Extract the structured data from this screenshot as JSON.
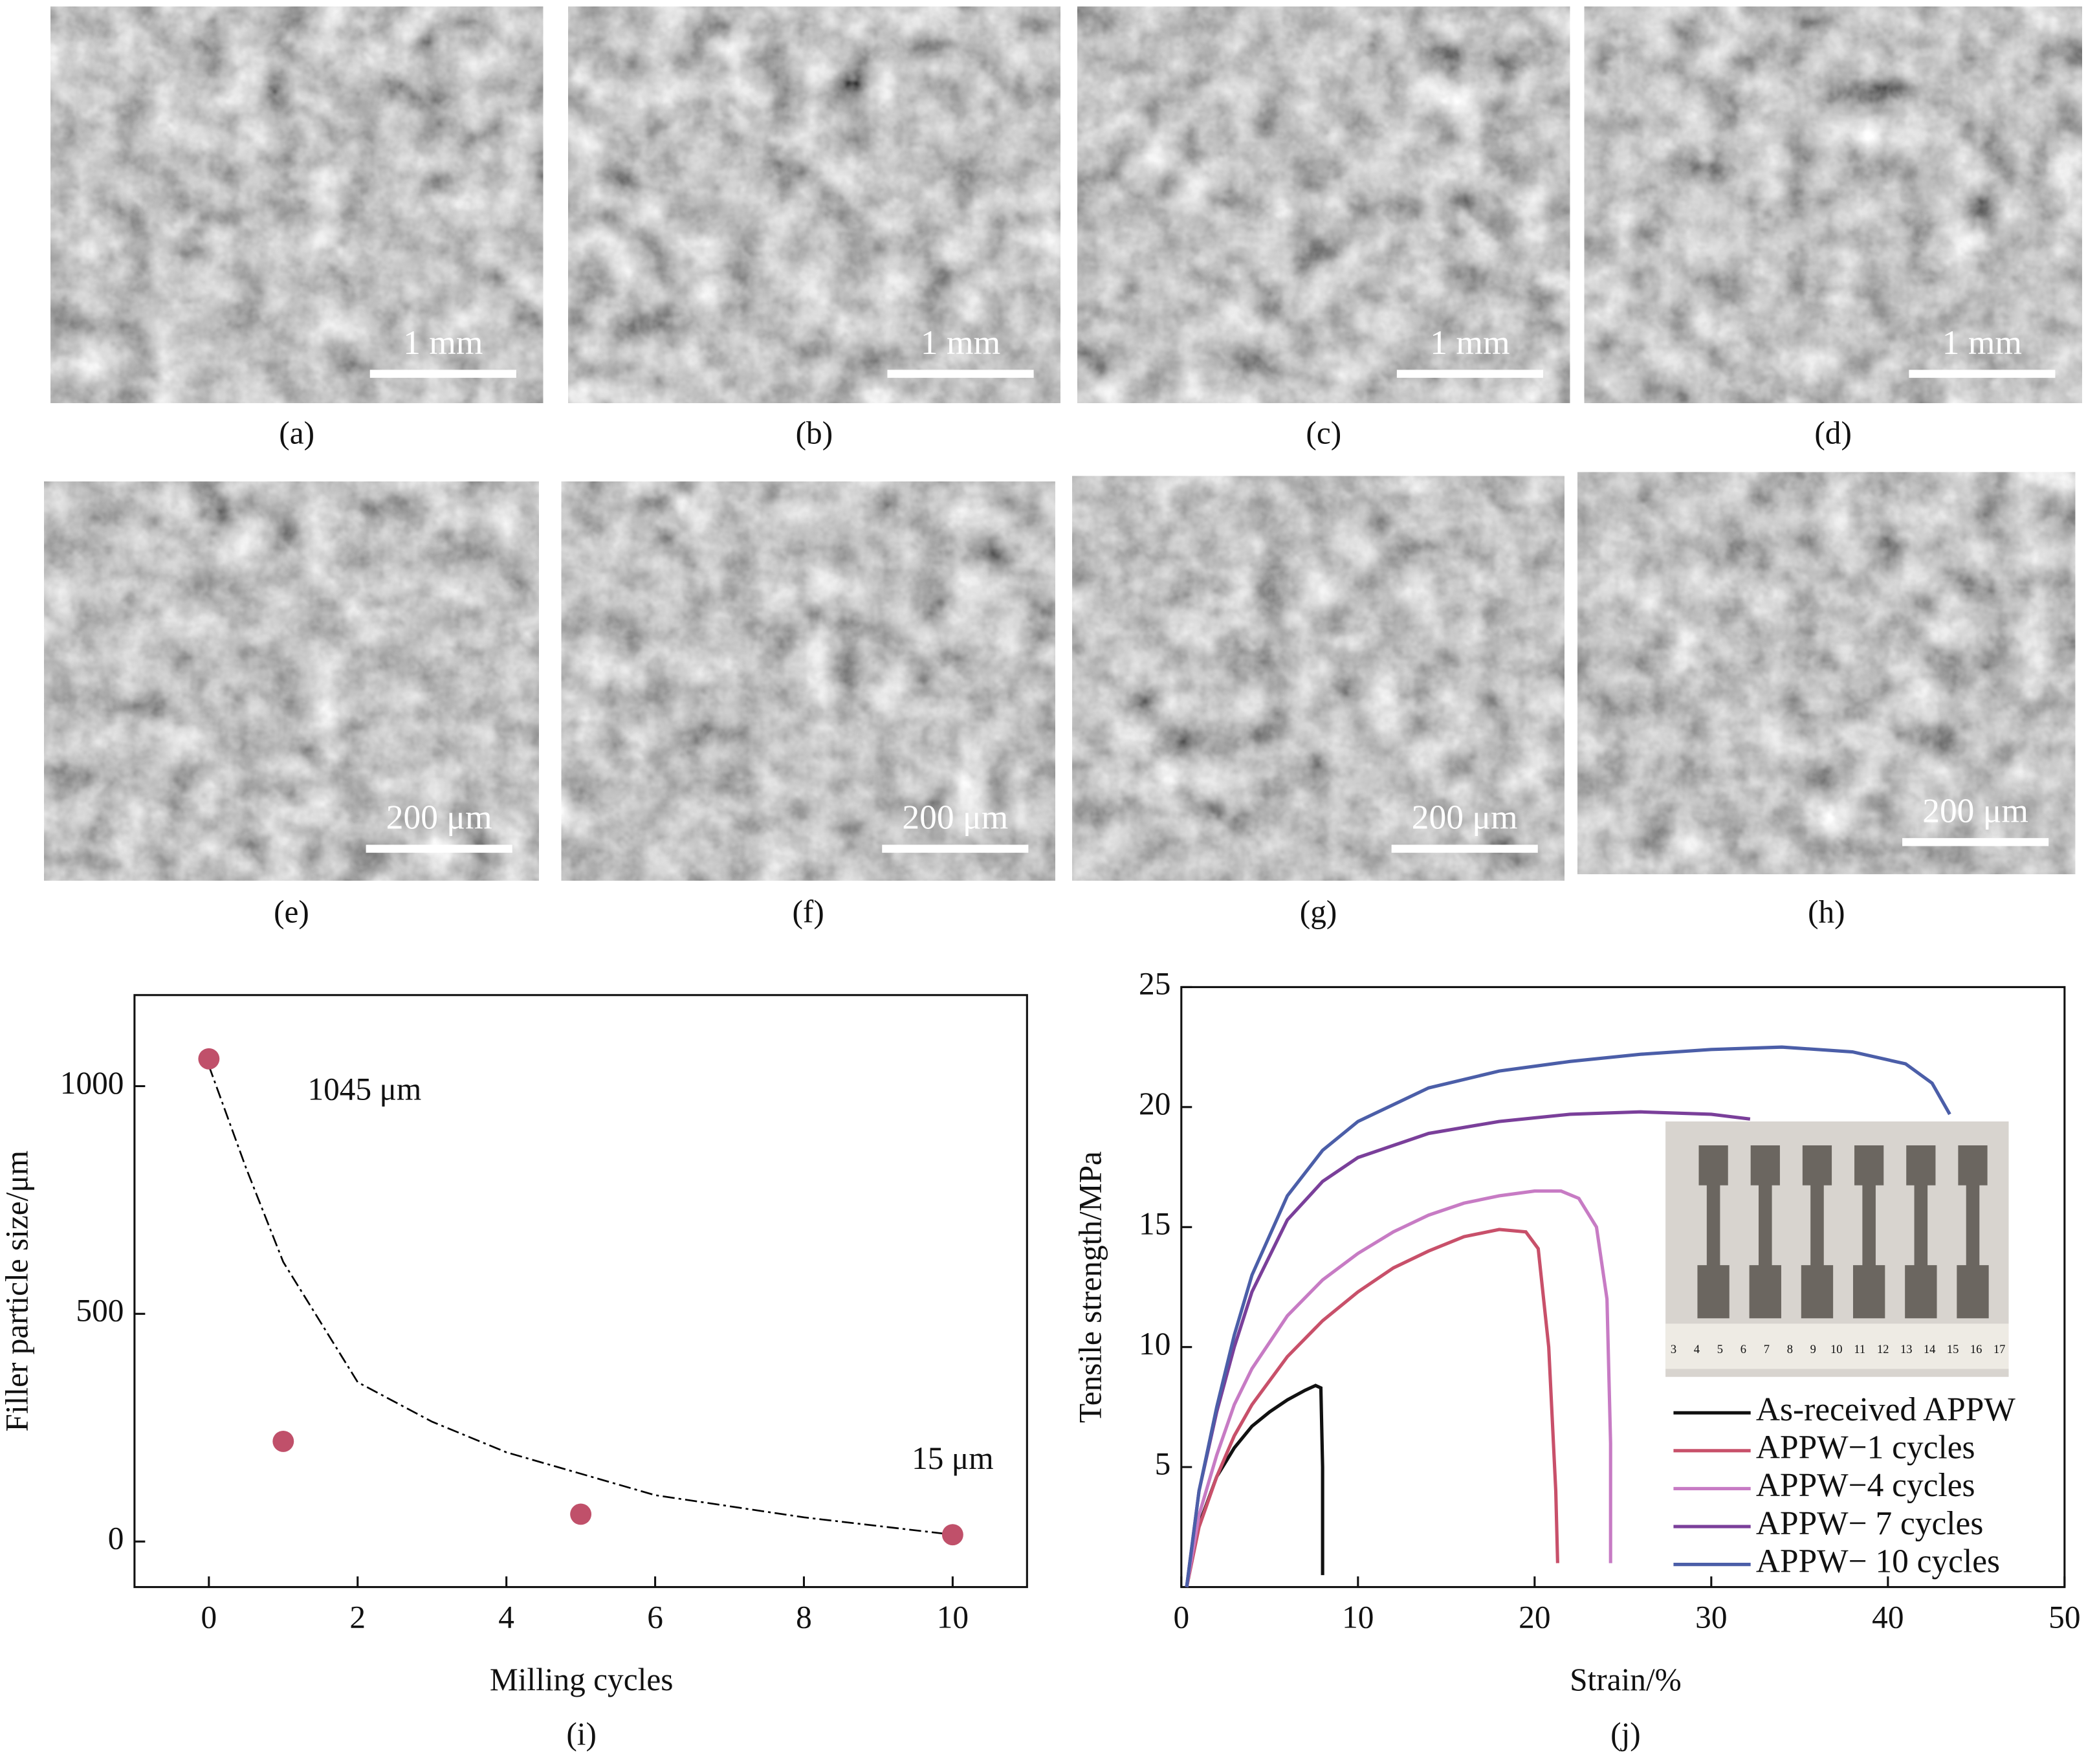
{
  "panels": [
    {
      "label": "(a)",
      "scale_bar": "1 mm"
    },
    {
      "label": "(b)",
      "scale_bar": "1 mm"
    },
    {
      "label": "(c)",
      "scale_bar": "1 mm"
    },
    {
      "label": "(d)",
      "scale_bar": "1 mm"
    },
    {
      "label": "(e)",
      "scale_bar": "200 μm"
    },
    {
      "label": "(f)",
      "scale_bar": "200 μm"
    },
    {
      "label": "(g)",
      "scale_bar": "200 μm"
    },
    {
      "label": "(h)",
      "scale_bar": "200 μm"
    }
  ],
  "chart_data": [
    {
      "type": "scatter",
      "caption": "(i)",
      "x_label": "Milling cycles",
      "y_label": "Filler particle size/μm",
      "xlim": [
        -1,
        11
      ],
      "ylim": [
        -100,
        1200
      ],
      "xticks": [
        0,
        2,
        4,
        6,
        8,
        10
      ],
      "yticks": [
        0,
        500,
        1000
      ],
      "series": [
        {
          "color": "#c0506a",
          "x": [
            0,
            1,
            5,
            10
          ],
          "values": [
            1060,
            220,
            60,
            15
          ]
        }
      ],
      "fit": {
        "color": "#000000",
        "x": [
          0,
          0.5,
          1,
          2,
          3,
          4,
          6,
          8,
          10
        ],
        "values": [
          1045,
          820,
          614,
          350,
          263,
          196,
          102,
          53,
          15
        ]
      },
      "annotations": [
        {
          "text": "1045 μm",
          "x": 0,
          "y": 1045
        },
        {
          "text": "15 μm",
          "x": 10,
          "y": 15
        }
      ]
    },
    {
      "type": "line",
      "caption": "(j)",
      "x_label": "Strain/%",
      "y_label": "Tensile strength/MPa",
      "xlim": [
        0,
        50
      ],
      "ylim": [
        0,
        25
      ],
      "xticks": [
        0,
        10,
        20,
        30,
        40,
        50
      ],
      "yticks": [
        5,
        10,
        15,
        20,
        25
      ],
      "inset_scale_labels": [
        "3",
        "4",
        "5",
        "6",
        "7",
        "8",
        "9",
        "10",
        "11",
        "12",
        "13",
        "14",
        "15",
        "16",
        "17"
      ],
      "series": [
        {
          "name": "As-received APPW",
          "color": "#111111",
          "x": [
            0.3,
            1,
            2,
            3,
            4,
            5,
            6,
            7,
            7.6,
            7.9,
            8.0,
            8.0
          ],
          "values": [
            0,
            2.6,
            4.6,
            5.8,
            6.7,
            7.3,
            7.8,
            8.2,
            8.4,
            8.3,
            5,
            0.5
          ]
        },
        {
          "name": "APPW−1 cycles",
          "color": "#c8506a",
          "x": [
            0.3,
            1,
            2,
            3,
            4,
            6,
            8,
            10,
            12,
            14,
            16,
            18,
            19.5,
            20.2,
            20.8,
            21.2,
            21.3
          ],
          "values": [
            0,
            2.5,
            4.6,
            6.3,
            7.6,
            9.6,
            11.1,
            12.3,
            13.3,
            14.0,
            14.6,
            14.9,
            14.8,
            14.1,
            10,
            4,
            1
          ]
        },
        {
          "name": "APPW−4 cycles",
          "color": "#c77bc4",
          "x": [
            0.3,
            1,
            2,
            3,
            4,
            6,
            8,
            10,
            12,
            14,
            16,
            18,
            20,
            21.5,
            22.5,
            23.5,
            24.1,
            24.3,
            24.3
          ],
          "values": [
            0,
            3,
            5.5,
            7.6,
            9.1,
            11.3,
            12.8,
            13.9,
            14.8,
            15.5,
            16.0,
            16.3,
            16.5,
            16.5,
            16.2,
            15,
            12,
            6,
            1
          ]
        },
        {
          "name": "APPW− 7 cycles",
          "color": "#7a3f9a",
          "x": [
            0.3,
            1,
            2,
            3,
            4,
            6,
            8,
            10,
            14,
            18,
            22,
            26,
            30,
            32.2
          ],
          "values": [
            0,
            4,
            7.3,
            10,
            12.3,
            15.3,
            16.9,
            17.9,
            18.9,
            19.4,
            19.7,
            19.8,
            19.7,
            19.5
          ]
        },
        {
          "name": "APPW− 10 cycles",
          "color": "#4b5ea8",
          "x": [
            0.3,
            1,
            2,
            3,
            4,
            6,
            8,
            10,
            14,
            18,
            22,
            26,
            30,
            34,
            38,
            41,
            42.5,
            43.5
          ],
          "values": [
            0,
            4,
            7.5,
            10.5,
            13,
            16.3,
            18.2,
            19.4,
            20.8,
            21.5,
            21.9,
            22.2,
            22.4,
            22.5,
            22.3,
            21.8,
            21,
            19.7
          ]
        }
      ]
    }
  ]
}
